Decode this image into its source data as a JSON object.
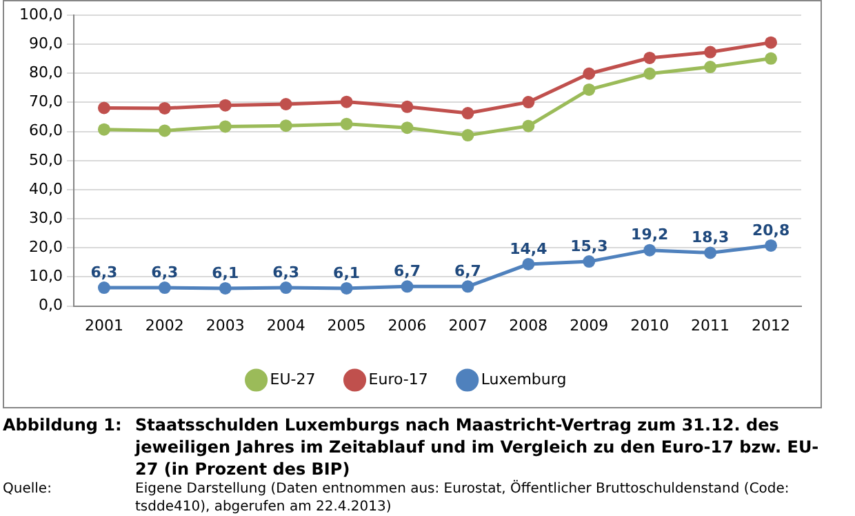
{
  "chart_data": {
    "type": "line",
    "title": "Staatsschulden Luxemburgs nach Maastricht-Vertrag zum 31.12. des jeweiligen Jahres im Zeitablauf und im Vergleich zu den Euro-17 bzw. EU-27 (in Prozent des BIP)",
    "annotations": [
      "Abbildung 1:",
      "Quelle:",
      "Eigene Darstellung (Daten entnommen aus: Eurostat, Öffentlicher Bruttoschuldenstand (Code: tsdde410), abgerufen am 22.4.2013)"
    ],
    "categories": [
      "2001",
      "2002",
      "2003",
      "2004",
      "2005",
      "2006",
      "2007",
      "2008",
      "2009",
      "2010",
      "2011",
      "2012"
    ],
    "series": [
      {
        "name": "EU-27",
        "color": "#9bbb59",
        "values": [
          60.7,
          60.3,
          61.7,
          62.0,
          62.6,
          61.3,
          58.7,
          61.9,
          74.4,
          79.9,
          82.2,
          85.1
        ]
      },
      {
        "name": "Euro-17",
        "color": "#c0504d",
        "values": [
          68.1,
          68.0,
          69.0,
          69.4,
          70.2,
          68.5,
          66.3,
          70.1,
          79.9,
          85.3,
          87.3,
          90.6
        ]
      },
      {
        "name": "Luxemburg",
        "color": "#4f81bd",
        "values": [
          6.3,
          6.3,
          6.1,
          6.3,
          6.1,
          6.7,
          6.7,
          14.4,
          15.3,
          19.2,
          18.3,
          20.8
        ],
        "value_labels": [
          "6,3",
          "6,3",
          "6,1",
          "6,3",
          "6,1",
          "6,7",
          "6,7",
          "14,4",
          "15,3",
          "19,2",
          "18,3",
          "20,8"
        ]
      }
    ],
    "ylim": [
      0,
      100
    ],
    "yticks": [
      {
        "value": 0,
        "label": "0,0"
      },
      {
        "value": 10,
        "label": "10,0"
      },
      {
        "value": 20,
        "label": "20,0"
      },
      {
        "value": 30,
        "label": "30,0"
      },
      {
        "value": 40,
        "label": "40,0"
      },
      {
        "value": 50,
        "label": "50,0"
      },
      {
        "value": 60,
        "label": "60,0"
      },
      {
        "value": 70,
        "label": "70,0"
      },
      {
        "value": 80,
        "label": "80,0"
      },
      {
        "value": 90,
        "label": "90,0"
      },
      {
        "value": 100,
        "label": "100,0"
      }
    ],
    "grid": "y",
    "legend": "bottom",
    "marker": "circle",
    "line_style": "solid"
  }
}
